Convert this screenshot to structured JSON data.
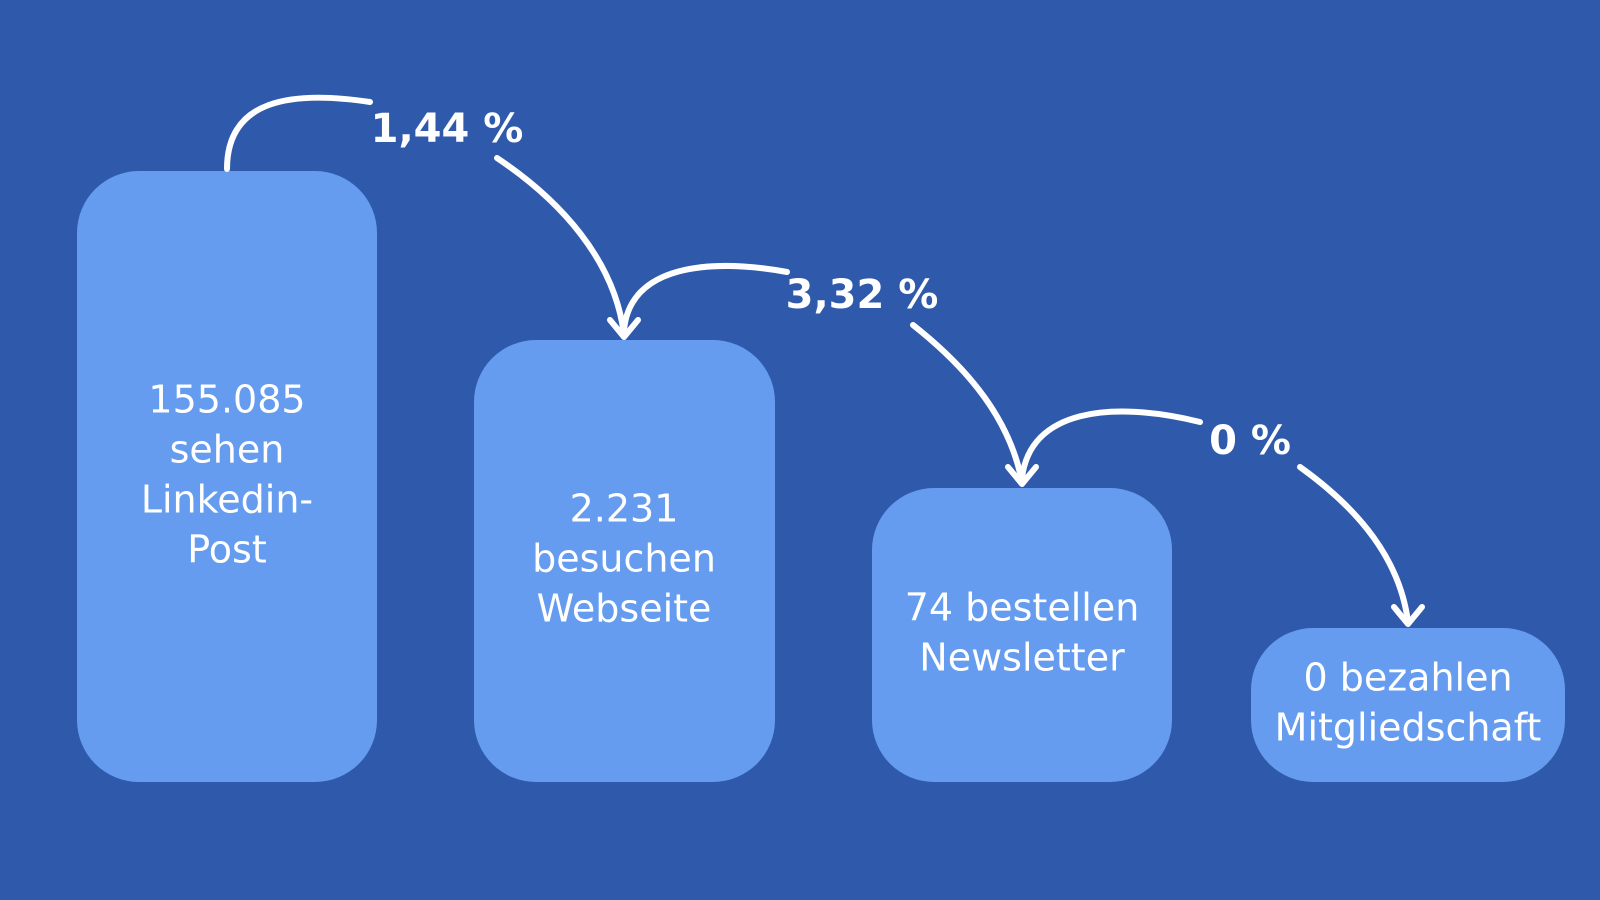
{
  "nodes": [
    {
      "lines": [
        "155.085",
        "sehen",
        "Linkedin-",
        "Post"
      ]
    },
    {
      "lines": [
        "2.231",
        "besuchen",
        "Webseite"
      ]
    },
    {
      "lines": [
        "74 bestellen",
        "Newsletter"
      ]
    },
    {
      "lines": [
        "0 bezahlen",
        "Mitgliedschaft"
      ]
    }
  ],
  "edges": [
    {
      "label": "1,44 %"
    },
    {
      "label": "3,32 %"
    },
    {
      "label": "0 %"
    }
  ]
}
